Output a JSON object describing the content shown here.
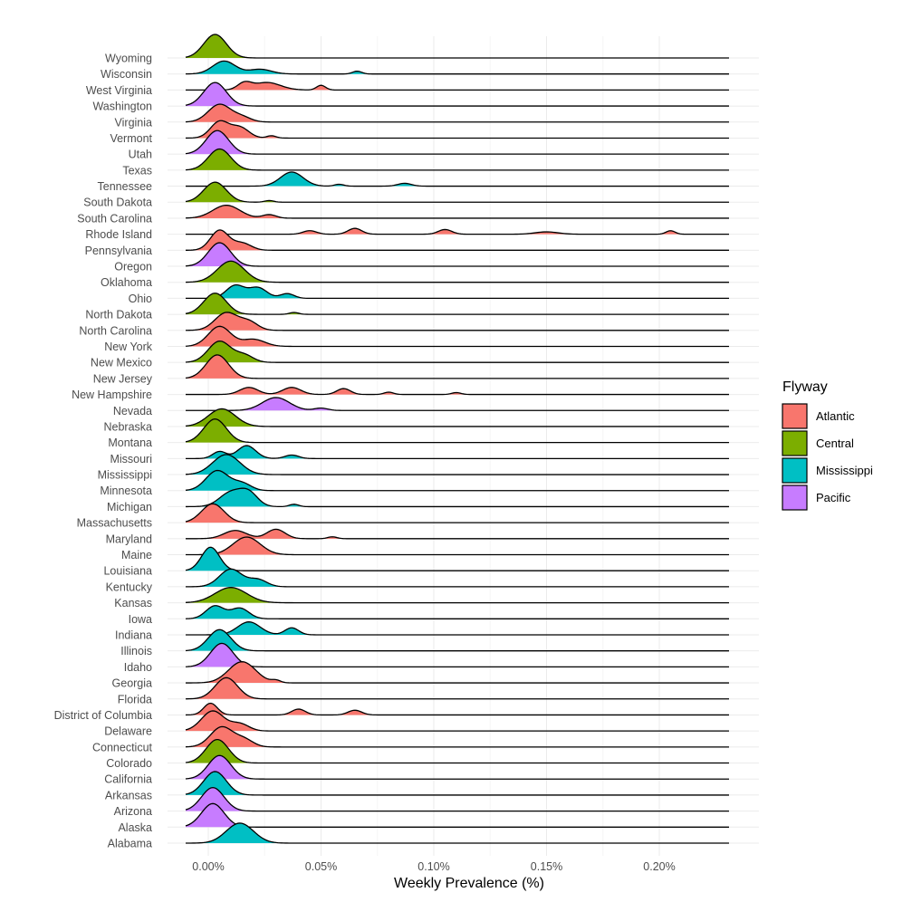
{
  "chart_data": {
    "type": "ridgeline",
    "title": "",
    "xlabel": "Weekly Prevalence (%)",
    "ylabel": "",
    "xlim": [
      -0.0001,
      0.0023
    ],
    "x_ticks": [
      0,
      0.0005,
      0.001,
      0.0015,
      0.002
    ],
    "x_tick_labels": [
      "0.00%",
      "0.05%",
      "0.10%",
      "0.15%",
      "0.20%"
    ],
    "legend": {
      "title": "Flyway",
      "position": "right",
      "entries": [
        {
          "name": "Atlantic",
          "color": "#F8766D"
        },
        {
          "name": "Central",
          "color": "#7CAE00"
        },
        {
          "name": "Mississippi",
          "color": "#00BFC4"
        },
        {
          "name": "Pacific",
          "color": "#C77CFF"
        }
      ]
    },
    "series": [
      {
        "state": "Wyoming",
        "flyway": "Central",
        "peaks": [
          [
            3e-05,
            1.0,
            5e-05
          ]
        ]
      },
      {
        "state": "Wisconsin",
        "flyway": "Mississippi",
        "peaks": [
          [
            7e-05,
            0.55,
            5e-05
          ],
          [
            0.00023,
            0.2,
            5e-05
          ],
          [
            0.00066,
            0.12,
            2e-05
          ]
        ]
      },
      {
        "state": "West Virginia",
        "flyway": "Atlantic",
        "peaks": [
          [
            0.00016,
            0.28,
            3e-05
          ],
          [
            0.00026,
            0.32,
            6e-05
          ],
          [
            0.0005,
            0.2,
            2e-05
          ]
        ]
      },
      {
        "state": "Washington",
        "flyway": "Pacific",
        "peaks": [
          [
            3e-05,
            1.0,
            5e-05
          ]
        ]
      },
      {
        "state": "Virginia",
        "flyway": "Atlantic",
        "peaks": [
          [
            5e-05,
            0.75,
            5e-05
          ],
          [
            0.00015,
            0.2,
            4e-05
          ]
        ]
      },
      {
        "state": "Vermont",
        "flyway": "Atlantic",
        "peaks": [
          [
            5e-05,
            0.7,
            4e-05
          ],
          [
            0.00014,
            0.45,
            4e-05
          ],
          [
            0.00028,
            0.1,
            2e-05
          ]
        ]
      },
      {
        "state": "Utah",
        "flyway": "Pacific",
        "peaks": [
          [
            4e-05,
            1.0,
            5e-05
          ]
        ]
      },
      {
        "state": "Texas",
        "flyway": "Central",
        "peaks": [
          [
            5e-05,
            0.9,
            5e-05
          ]
        ]
      },
      {
        "state": "Tennessee",
        "flyway": "Mississippi",
        "peaks": [
          [
            0.00037,
            0.6,
            5e-05
          ],
          [
            0.00058,
            0.08,
            2e-05
          ],
          [
            0.00087,
            0.12,
            3e-05
          ]
        ]
      },
      {
        "state": "South Dakota",
        "flyway": "Central",
        "peaks": [
          [
            3e-05,
            0.85,
            5e-05
          ],
          [
            0.00027,
            0.07,
            2e-05
          ]
        ]
      },
      {
        "state": "South Carolina",
        "flyway": "Atlantic",
        "peaks": [
          [
            8e-05,
            0.55,
            6e-05
          ],
          [
            0.00027,
            0.15,
            3e-05
          ]
        ]
      },
      {
        "state": "Rhode Island",
        "flyway": "Atlantic",
        "peaks": [
          [
            0.00045,
            0.15,
            3e-05
          ],
          [
            0.00065,
            0.25,
            3e-05
          ],
          [
            0.00105,
            0.2,
            3e-05
          ],
          [
            0.0015,
            0.1,
            5e-05
          ],
          [
            0.00205,
            0.15,
            2e-05
          ]
        ]
      },
      {
        "state": "Pennsylvania",
        "flyway": "Atlantic",
        "peaks": [
          [
            5e-05,
            0.85,
            4e-05
          ],
          [
            0.00015,
            0.3,
            4e-05
          ]
        ]
      },
      {
        "state": "Oregon",
        "flyway": "Pacific",
        "peaks": [
          [
            5e-05,
            1.0,
            5e-05
          ]
        ]
      },
      {
        "state": "Oklahoma",
        "flyway": "Central",
        "peaks": [
          [
            0.0001,
            0.9,
            6e-05
          ]
        ]
      },
      {
        "state": "Ohio",
        "flyway": "Mississippi",
        "peaks": [
          [
            0.00012,
            0.55,
            4e-05
          ],
          [
            0.00022,
            0.45,
            4e-05
          ],
          [
            0.00035,
            0.2,
            3e-05
          ]
        ]
      },
      {
        "state": "North Dakota",
        "flyway": "Central",
        "peaks": [
          [
            3e-05,
            0.9,
            5e-05
          ],
          [
            0.00038,
            0.08,
            2e-05
          ]
        ]
      },
      {
        "state": "North Carolina",
        "flyway": "Atlantic",
        "peaks": [
          [
            8e-05,
            0.75,
            5e-05
          ],
          [
            0.00018,
            0.35,
            4e-05
          ]
        ]
      },
      {
        "state": "New York",
        "flyway": "Atlantic",
        "peaks": [
          [
            5e-05,
            0.85,
            5e-05
          ],
          [
            0.0002,
            0.3,
            5e-05
          ]
        ]
      },
      {
        "state": "New Mexico",
        "flyway": "Central",
        "peaks": [
          [
            5e-05,
            0.9,
            5e-05
          ],
          [
            0.00016,
            0.3,
            4e-05
          ]
        ]
      },
      {
        "state": "New Jersey",
        "flyway": "Atlantic",
        "peaks": [
          [
            4e-05,
            1.0,
            5e-05
          ]
        ]
      },
      {
        "state": "New Hampshire",
        "flyway": "Atlantic",
        "peaks": [
          [
            0.00018,
            0.3,
            4e-05
          ],
          [
            0.00037,
            0.3,
            4e-05
          ],
          [
            0.0006,
            0.25,
            3e-05
          ],
          [
            0.0008,
            0.1,
            2e-05
          ],
          [
            0.0011,
            0.08,
            2e-05
          ]
        ]
      },
      {
        "state": "Nevada",
        "flyway": "Pacific",
        "peaks": [
          [
            0.0003,
            0.55,
            6e-05
          ],
          [
            0.0005,
            0.1,
            3e-05
          ]
        ]
      },
      {
        "state": "Nebraska",
        "flyway": "Central",
        "peaks": [
          [
            6e-05,
            0.75,
            6e-05
          ]
        ]
      },
      {
        "state": "Montana",
        "flyway": "Central",
        "peaks": [
          [
            3e-05,
            1.0,
            5e-05
          ]
        ]
      },
      {
        "state": "Missouri",
        "flyway": "Mississippi",
        "peaks": [
          [
            5e-05,
            0.3,
            3e-05
          ],
          [
            0.00017,
            0.55,
            4e-05
          ],
          [
            0.00037,
            0.15,
            3e-05
          ]
        ]
      },
      {
        "state": "Mississippi",
        "flyway": "Mississippi",
        "peaks": [
          [
            8e-05,
            0.85,
            6e-05
          ]
        ]
      },
      {
        "state": "Minnesota",
        "flyway": "Mississippi",
        "peaks": [
          [
            4e-05,
            0.85,
            5e-05
          ],
          [
            0.00015,
            0.3,
            4e-05
          ]
        ]
      },
      {
        "state": "Michigan",
        "flyway": "Mississippi",
        "peaks": [
          [
            0.0001,
            0.6,
            5e-05
          ],
          [
            0.00018,
            0.55,
            4e-05
          ],
          [
            0.00038,
            0.1,
            2e-05
          ]
        ]
      },
      {
        "state": "Massachusetts",
        "flyway": "Atlantic",
        "peaks": [
          [
            2e-05,
            0.8,
            5e-05
          ]
        ]
      },
      {
        "state": "Maryland",
        "flyway": "Atlantic",
        "peaks": [
          [
            0.00012,
            0.35,
            5e-05
          ],
          [
            0.0003,
            0.4,
            4e-05
          ],
          [
            0.00055,
            0.08,
            2e-05
          ]
        ]
      },
      {
        "state": "Maine",
        "flyway": "Atlantic",
        "peaks": [
          [
            0.00017,
            0.75,
            6e-05
          ]
        ]
      },
      {
        "state": "Louisiana",
        "flyway": "Mississippi",
        "peaks": [
          [
            1e-05,
            1.0,
            4e-05
          ]
        ]
      },
      {
        "state": "Kentucky",
        "flyway": "Mississippi",
        "peaks": [
          [
            0.0001,
            0.75,
            5e-05
          ],
          [
            0.00022,
            0.3,
            4e-05
          ]
        ]
      },
      {
        "state": "Kansas",
        "flyway": "Central",
        "peaks": [
          [
            0.0001,
            0.65,
            7e-05
          ]
        ]
      },
      {
        "state": "Iowa",
        "flyway": "Mississippi",
        "peaks": [
          [
            3e-05,
            0.55,
            4e-05
          ],
          [
            0.00014,
            0.45,
            4e-05
          ]
        ]
      },
      {
        "state": "Indiana",
        "flyway": "Mississippi",
        "peaks": [
          [
            0.00018,
            0.55,
            5e-05
          ],
          [
            0.00037,
            0.3,
            3e-05
          ]
        ]
      },
      {
        "state": "Illinois",
        "flyway": "Mississippi",
        "peaks": [
          [
            5e-05,
            0.9,
            5e-05
          ]
        ]
      },
      {
        "state": "Idaho",
        "flyway": "Pacific",
        "peaks": [
          [
            6e-05,
            1.0,
            5e-05
          ]
        ]
      },
      {
        "state": "Georgia",
        "flyway": "Atlantic",
        "peaks": [
          [
            0.00015,
            0.9,
            6e-05
          ],
          [
            0.0003,
            0.1,
            2e-05
          ]
        ]
      },
      {
        "state": "Florida",
        "flyway": "Atlantic",
        "peaks": [
          [
            8e-05,
            0.9,
            5e-05
          ]
        ]
      },
      {
        "state": "District of Columbia",
        "flyway": "Atlantic",
        "peaks": [
          [
            1e-05,
            0.5,
            3e-05
          ],
          [
            0.0004,
            0.25,
            3e-05
          ],
          [
            0.00065,
            0.2,
            3e-05
          ]
        ]
      },
      {
        "state": "Delaware",
        "flyway": "Atlantic",
        "peaks": [
          [
            2e-05,
            0.85,
            5e-05
          ],
          [
            0.00014,
            0.3,
            4e-05
          ]
        ]
      },
      {
        "state": "Connecticut",
        "flyway": "Atlantic",
        "peaks": [
          [
            6e-05,
            0.85,
            5e-05
          ],
          [
            0.00016,
            0.3,
            4e-05
          ]
        ]
      },
      {
        "state": "Colorado",
        "flyway": "Central",
        "peaks": [
          [
            4e-05,
            1.0,
            5e-05
          ]
        ]
      },
      {
        "state": "California",
        "flyway": "Pacific",
        "peaks": [
          [
            5e-05,
            1.0,
            5e-05
          ]
        ]
      },
      {
        "state": "Arkansas",
        "flyway": "Mississippi",
        "peaks": [
          [
            3e-05,
            1.0,
            5e-05
          ]
        ]
      },
      {
        "state": "Arizona",
        "flyway": "Pacific",
        "peaks": [
          [
            2e-05,
            1.0,
            5e-05
          ]
        ]
      },
      {
        "state": "Alaska",
        "flyway": "Pacific",
        "peaks": [
          [
            2e-05,
            1.0,
            5e-05
          ]
        ]
      },
      {
        "state": "Alabama",
        "flyway": "Mississippi",
        "peaks": [
          [
            0.00014,
            0.85,
            6e-05
          ]
        ]
      }
    ]
  }
}
